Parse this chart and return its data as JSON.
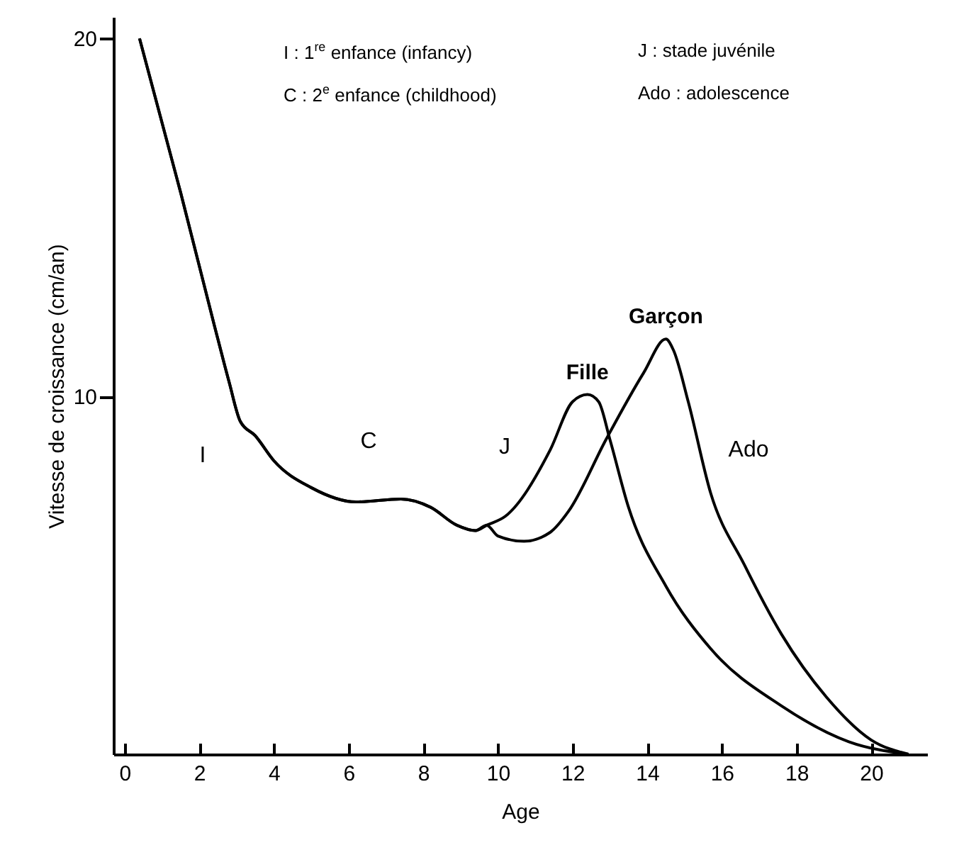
{
  "chart_data": {
    "type": "line",
    "xlabel": "Age",
    "ylabel": "Vitesse de croissance (cm/an)",
    "xlim": [
      -0.3,
      21.5
    ],
    "ylim": [
      0,
      20.6
    ],
    "xticks": [
      0,
      2,
      4,
      6,
      8,
      10,
      12,
      14,
      16,
      18,
      20
    ],
    "yticks": [
      10,
      20
    ],
    "grid": false,
    "marker": "none",
    "line_style": "solid",
    "series": [
      {
        "name": "Fille",
        "color": "#000000",
        "x": [
          0.4,
          1.5,
          2.4,
          2.8,
          3.1,
          3.5,
          4.0,
          5.0,
          6.2,
          7.4,
          8.2,
          8.9,
          9.4,
          9.7,
          10.2,
          11.4,
          12.0,
          12.4,
          12.7,
          13.0,
          13.5,
          14.5,
          15.7,
          17.6,
          19.4,
          21.0
        ],
        "values": [
          20.0,
          15.7,
          12.0,
          10.4,
          9.3,
          8.9,
          8.2,
          7.45,
          7.05,
          7.13,
          6.9,
          6.4,
          6.25,
          6.4,
          6.65,
          8.5,
          9.85,
          10.05,
          9.85,
          8.8,
          6.9,
          4.7,
          2.95,
          1.35,
          0.35,
          0
        ]
      },
      {
        "name": "Garçon",
        "color": "#000000",
        "x": [
          0.4,
          1.5,
          2.4,
          2.8,
          3.1,
          3.5,
          4.0,
          5.0,
          6.2,
          7.4,
          8.2,
          8.9,
          9.4,
          9.7,
          10.0,
          10.7,
          11.4,
          11.9,
          12.9,
          13.9,
          14.5,
          14.7,
          15.1,
          15.7,
          16.6,
          17.6,
          18.8,
          20.0,
          21.0
        ],
        "values": [
          20.0,
          15.7,
          12.0,
          10.4,
          9.3,
          8.9,
          8.2,
          7.45,
          7.05,
          7.13,
          6.9,
          6.4,
          6.25,
          6.4,
          6.1,
          5.95,
          6.2,
          6.8,
          8.8,
          10.65,
          11.6,
          11.3,
          9.85,
          7.3,
          5.3,
          3.35,
          1.6,
          0.4,
          0
        ]
      }
    ],
    "annotations": [
      "I : 1$^{re}$ enfance (infancy)",
      "J : stade juvénile",
      "C : 2$^{e}$ enfance (childhood)",
      "Ado : adolescence",
      "I",
      "C",
      "J",
      "Ado"
    ]
  }
}
